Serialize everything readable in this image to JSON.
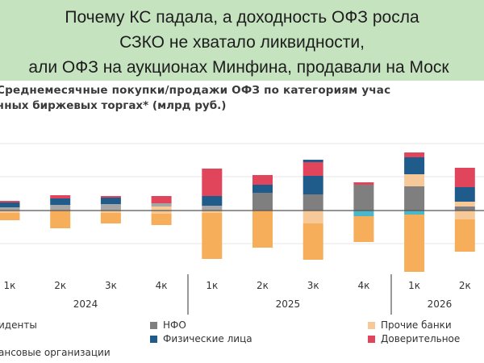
{
  "banner": {
    "line1": "Почему КС падала, а доходность ОФЗ росла",
    "line2": "СЗКО не хватало ликвидности,",
    "line3": "али ОФЗ на аукционах Минфина, продавали на Моск"
  },
  "chart_title": "Среднемесячные покупки/продажи ОФЗ по категориям учас",
  "chart_subtitle": "чных биржевых торгах* (млрд руб.)",
  "colors": {
    "nerez": "#a6a6a6",
    "nfo": "#7f7f7f",
    "fiz": "#1f5c8b",
    "prochie": "#f7c999",
    "dover": "#e0455b",
    "szko": "#f7ae5b",
    "teal": "#4bb7c9"
  },
  "chart_data": {
    "type": "bar",
    "stacked": true,
    "categories": [
      "1к",
      "2к",
      "3к",
      "4к",
      "1к",
      "2к",
      "3к",
      "4к",
      "1к",
      "2к"
    ],
    "year_labels": [
      {
        "label": "2024",
        "from": 0,
        "to": 3
      },
      {
        "label": "2025",
        "from": 4,
        "to": 7
      },
      {
        "label": "2026",
        "from": 8,
        "to": 9
      }
    ],
    "bars": [
      {
        "pos": [
          {
            "k": "nerez",
            "v": 4
          },
          {
            "k": "fiz",
            "v": 6
          },
          {
            "k": "dover",
            "v": 2
          }
        ],
        "neg": [
          {
            "k": "prochie",
            "v": 3
          },
          {
            "k": "szko",
            "v": 9
          }
        ]
      },
      {
        "pos": [
          {
            "k": "nerez",
            "v": 7
          },
          {
            "k": "fiz",
            "v": 8
          },
          {
            "k": "dover",
            "v": 4
          }
        ],
        "neg": [
          {
            "k": "szko",
            "v": 22
          }
        ]
      },
      {
        "pos": [
          {
            "k": "nerez",
            "v": 8
          },
          {
            "k": "fiz",
            "v": 8
          },
          {
            "k": "dover",
            "v": 2
          }
        ],
        "neg": [
          {
            "k": "prochie",
            "v": 3
          },
          {
            "k": "szko",
            "v": 13
          }
        ]
      },
      {
        "pos": [
          {
            "k": "prochie",
            "v": 5
          },
          {
            "k": "nerez",
            "v": 4
          },
          {
            "k": "dover",
            "v": 9
          }
        ],
        "neg": [
          {
            "k": "prochie",
            "v": 4
          },
          {
            "k": "szko",
            "v": 14
          }
        ]
      },
      {
        "pos": [
          {
            "k": "nerez",
            "v": 6
          },
          {
            "k": "fiz",
            "v": 12
          },
          {
            "k": "dover",
            "v": 34
          }
        ],
        "neg": [
          {
            "k": "prochie",
            "v": 3
          },
          {
            "k": "szko",
            "v": 57
          }
        ]
      },
      {
        "pos": [
          {
            "k": "nfo",
            "v": 22
          },
          {
            "k": "fiz",
            "v": 10
          },
          {
            "k": "dover",
            "v": 12
          }
        ],
        "neg": [
          {
            "k": "szko",
            "v": 46
          }
        ]
      },
      {
        "pos": [
          {
            "k": "nfo",
            "v": 20
          },
          {
            "k": "fiz",
            "v": 23
          },
          {
            "k": "dover",
            "v": 17
          },
          {
            "k": "fiz",
            "v": 3
          }
        ],
        "neg": [
          {
            "k": "prochie",
            "v": 16
          },
          {
            "k": "szko",
            "v": 45
          }
        ]
      },
      {
        "pos": [
          {
            "k": "nfo",
            "v": 32
          },
          {
            "k": "dover",
            "v": 3
          }
        ],
        "neg": [
          {
            "k": "teal",
            "v": 7
          },
          {
            "k": "szko",
            "v": 32
          }
        ]
      },
      {
        "pos": [
          {
            "k": "nfo",
            "v": 30
          },
          {
            "k": "prochie",
            "v": 15
          },
          {
            "k": "fiz",
            "v": 21
          },
          {
            "k": "dover",
            "v": 6
          }
        ],
        "neg": [
          {
            "k": "teal",
            "v": 5
          },
          {
            "k": "szko",
            "v": 71
          }
        ]
      },
      {
        "pos": [
          {
            "k": "nfo",
            "v": 5
          },
          {
            "k": "prochie",
            "v": 6
          },
          {
            "k": "fiz",
            "v": 18
          },
          {
            "k": "dover",
            "v": 24
          }
        ],
        "neg": [
          {
            "k": "prochie",
            "v": 11
          },
          {
            "k": "szko",
            "v": 40
          }
        ]
      }
    ],
    "legend": [
      {
        "key": "nerez",
        "label": "иденты"
      },
      {
        "key": "nfo",
        "label": "НФО"
      },
      {
        "key": "prochie",
        "label": "Прочие банки"
      },
      {
        "key": "fiz",
        "label": "Физические лица"
      },
      {
        "key": "dover",
        "label": "Доверительное"
      },
      {
        "key": "szko",
        "label": "ансовые организации"
      }
    ],
    "legend_placement": "bottom",
    "grid": true
  }
}
